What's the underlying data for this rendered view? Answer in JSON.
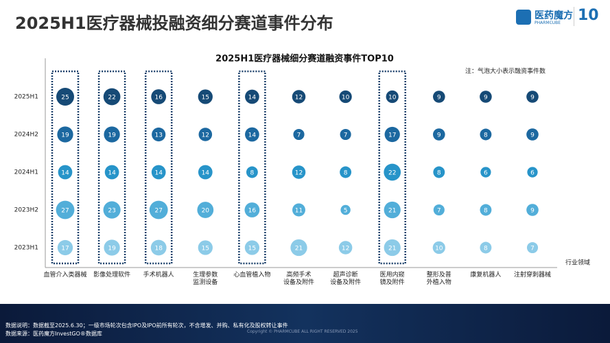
{
  "header": {
    "title": "2025H1医疗器械投融资细分赛道事件分布",
    "logo_text": "医药魔方",
    "logo_sub": "PHARMCUBE",
    "anniversary": "10"
  },
  "chart_data": {
    "type": "bubble-matrix",
    "title": "2025H1医疗器械细分赛道融资事件TOP10",
    "note": "注：气泡大小表示融资事件数",
    "x_label": "行业领域",
    "categories": [
      "血管介入类器械",
      "影像处理软件",
      "手术机器人",
      "生理参数\n监测设备",
      "心血管植入物",
      "高频手术\n设备及附件",
      "超声诊断\n设备及附件",
      "医用内窥\n镜及附件",
      "整形及普\n外植入物",
      "康复机器人",
      "注射穿刺器械"
    ],
    "highlight": [
      0,
      1,
      2,
      4,
      7
    ],
    "series": [
      {
        "name": "2025H1",
        "color": "#164a76",
        "values": [
          25,
          22,
          16,
          15,
          14,
          12,
          10,
          10,
          9,
          9,
          9
        ]
      },
      {
        "name": "2024H2",
        "color": "#1c68a0",
        "values": [
          19,
          19,
          13,
          12,
          14,
          7,
          7,
          17,
          9,
          8,
          9
        ]
      },
      {
        "name": "2024H1",
        "color": "#2794c9",
        "values": [
          14,
          14,
          14,
          14,
          8,
          12,
          8,
          22,
          8,
          6,
          6
        ]
      },
      {
        "name": "2023H2",
        "color": "#52aed9",
        "values": [
          27,
          23,
          27,
          20,
          16,
          11,
          5,
          21,
          7,
          8,
          9
        ]
      },
      {
        "name": "2023H1",
        "color": "#8ccbe8",
        "values": [
          17,
          19,
          18,
          15,
          15,
          21,
          12,
          21,
          10,
          8,
          7
        ]
      }
    ]
  },
  "footer": {
    "note": "数据说明：数据截至2025.6.30；一级市场轮次包含IPO及IPO前所有轮次，不含增发、并购、私有化及股权转让事件",
    "source": "数据来源：医药魔方InvestGO®数据库",
    "copyright": "Copyright © PHARMCUBE ALL RIGHT RESERVED 2025"
  }
}
